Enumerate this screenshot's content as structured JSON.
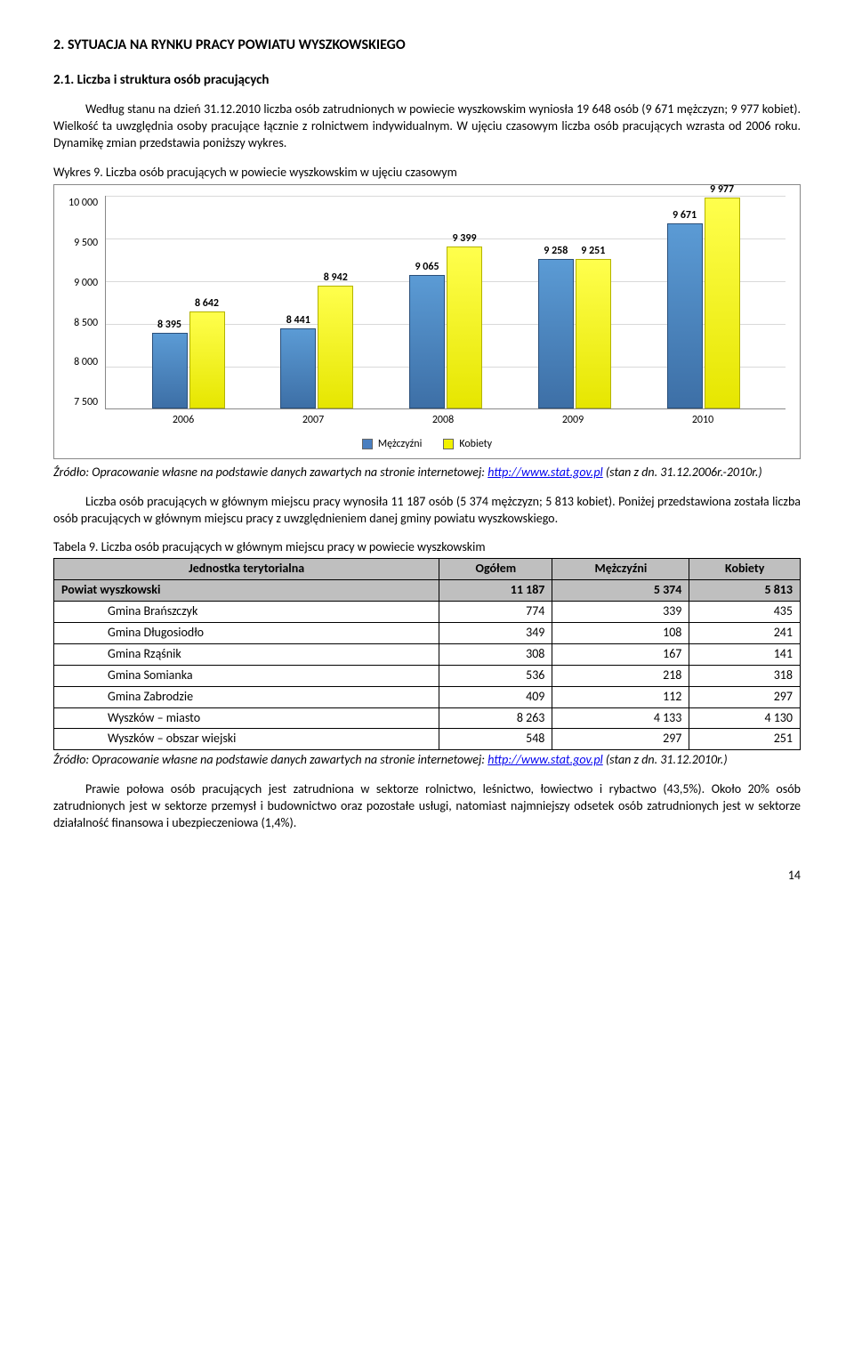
{
  "section_title": "2. SYTUACJA NA RYNKU PRACY POWIATU WYSZKOWSKIEGO",
  "subsection_title": "2.1. Liczba i struktura osób pracujących",
  "para1": "Według stanu na dzień 31.12.2010 liczba osób zatrudnionych w powiecie wyszkowskim wyniosła 19 648 osób (9 671 mężczyzn; 9 977 kobiet). Wielkość ta uwzględnia osoby pracujące łącznie z rolnictwem indywidualnym. W ujęciu czasowym liczba osób pracujących wzrasta od 2006 roku. Dynamikę zmian przedstawia poniższy wykres.",
  "chart": {
    "title": "Wykres 9. Liczba osób pracujących w powiecie wyszkowskim w ujęciu czasowym",
    "ylim_min": 7500,
    "ylim_max": 10000,
    "ytick_step": 500,
    "yticks": [
      "10 000",
      "9 500",
      "9 000",
      "8 500",
      "8 000",
      "7 500"
    ],
    "years": [
      "2006",
      "2007",
      "2008",
      "2009",
      "2010"
    ],
    "male": [
      8395,
      8441,
      9065,
      9258,
      9671
    ],
    "female": [
      8642,
      8942,
      9399,
      9251,
      9977
    ],
    "male_labels": [
      "8 395",
      "8 441",
      "9 065",
      "9 258",
      "9 671"
    ],
    "female_labels": [
      "8 642",
      "8 942",
      "9 399",
      "9 251",
      "9 977"
    ],
    "legend_male": "Mężczyźni",
    "legend_female": "Kobiety"
  },
  "source1_prefix": "Źródło: Opracowanie własne na podstawie danych zawartych na stronie internetowej: ",
  "source1_link": "http://www.stat.gov.pl",
  "source1_suffix": " (stan z dn. 31.12.2006r.-2010r.)",
  "para2": "Liczba osób pracujących w głównym miejscu pracy wynosiła 11 187 osób (5 374 mężczyzn; 5 813 kobiet). Poniżej przedstawiona została liczba osób pracujących w głównym miejscu pracy z uwzględnieniem danej gminy powiatu wyszkowskiego.",
  "table": {
    "title": "Tabela 9. Liczba osób pracujących w głównym miejscu pracy w powiecie wyszkowskim",
    "headers": [
      "Jednostka terytorialna",
      "Ogółem",
      "Mężczyźni",
      "Kobiety"
    ],
    "total_row": {
      "name": "Powiat wyszkowski",
      "vals": [
        "11 187",
        "5 374",
        "5 813"
      ]
    },
    "rows": [
      {
        "name": "Gmina Brańszczyk",
        "vals": [
          "774",
          "339",
          "435"
        ]
      },
      {
        "name": "Gmina Długosiodło",
        "vals": [
          "349",
          "108",
          "241"
        ]
      },
      {
        "name": "Gmina Rząśnik",
        "vals": [
          "308",
          "167",
          "141"
        ]
      },
      {
        "name": "Gmina Somianka",
        "vals": [
          "536",
          "218",
          "318"
        ]
      },
      {
        "name": "Gmina Zabrodzie",
        "vals": [
          "409",
          "112",
          "297"
        ]
      },
      {
        "name": "Wyszków – miasto",
        "vals": [
          "8 263",
          "4 133",
          "4 130"
        ]
      },
      {
        "name": "Wyszków – obszar wiejski",
        "vals": [
          "548",
          "297",
          "251"
        ]
      }
    ]
  },
  "source2_prefix": "Źródło: Opracowanie własne na podstawie danych zawartych na stronie internetowej: ",
  "source2_link": "http://www.stat.gov.pl",
  "source2_suffix": " (stan z dn. 31.12.2010r.)",
  "para3": "Prawie połowa osób pracujących jest zatrudniona w sektorze rolnictwo, leśnictwo, łowiectwo i rybactwo (43,5%). Około 20% osób zatrudnionych jest w sektorze przemysł i budownictwo oraz pozostałe usługi, natomiast najmniejszy odsetek osób zatrudnionych jest w sektorze działalność finansowa i ubezpieczeniowa (1,4%).",
  "page_number": "14"
}
